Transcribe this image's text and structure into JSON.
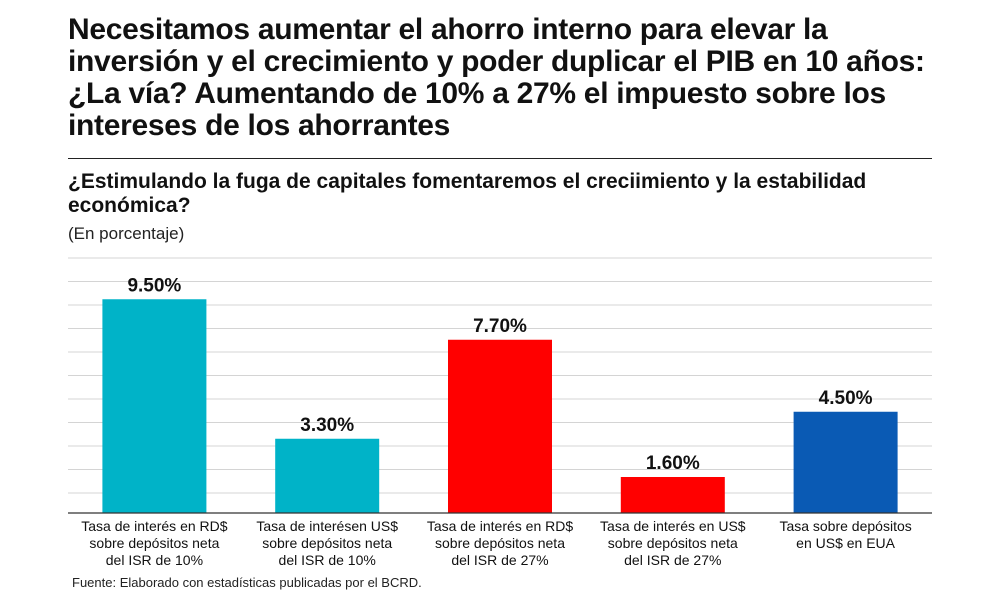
{
  "headline": {
    "lines": [
      "Necesitamos aumentar el ahorro interno para elevar la",
      " inversión y el crecimiento y poder duplicar el PIB en 10 años:",
      "¿La vía? Aumentando de 10% a 27% el impuesto sobre los",
      "intereses de los ahorrantes"
    ]
  },
  "chart_data": {
    "type": "bar",
    "title": "¿Estimulando la fuga de capitales fomentaremos el creciimiento y la estabilidad económica?",
    "title_lines": [
      "¿Estimulando la fuga de capitales fomentaremos el creciimiento y la estabilidad",
      "económica?"
    ],
    "unit_note": "(En porcentaje)",
    "categories": [
      "Tasa de interés en RD$ sobre depósitos neta del ISR de 10%",
      "Tasa de interésen US$ sobre depósitos neta del ISR de 10%",
      "Tasa de interés en RD$ sobre depósitos neta del ISR de 27%",
      "Tasa de interés en US$ sobre depósitos neta del ISR de 27%",
      "Tasa sobre depósitos en US$ en EUA"
    ],
    "category_lines": [
      [
        "Tasa de interés en RD$",
        "sobre depósitos neta",
        "del ISR de 10%"
      ],
      [
        "Tasa de interésen US$",
        "sobre depósitos neta",
        "del ISR de 10%"
      ],
      [
        "Tasa de interés en RD$",
        "sobre depósitos neta",
        "del ISR de 27%"
      ],
      [
        "Tasa de interés en US$",
        "sobre depósitos neta",
        "del ISR de 27%"
      ],
      [
        "Tasa sobre depósitos",
        "en US$ en EUA"
      ]
    ],
    "values": [
      9.5,
      3.3,
      7.7,
      1.6,
      4.5
    ],
    "data_labels": [
      "9.50%",
      "3.30%",
      "7.70%",
      "1.60%",
      "4.50%"
    ],
    "colors": [
      "#00b3c8",
      "#00b3c8",
      "#ff0000",
      "#ff0000",
      "#0a5ab4"
    ],
    "ylim": [
      0,
      10
    ],
    "grid": true,
    "legend": "none"
  },
  "source": "Fuente: Elaborado con estadísticas publicadas por el BCRD."
}
